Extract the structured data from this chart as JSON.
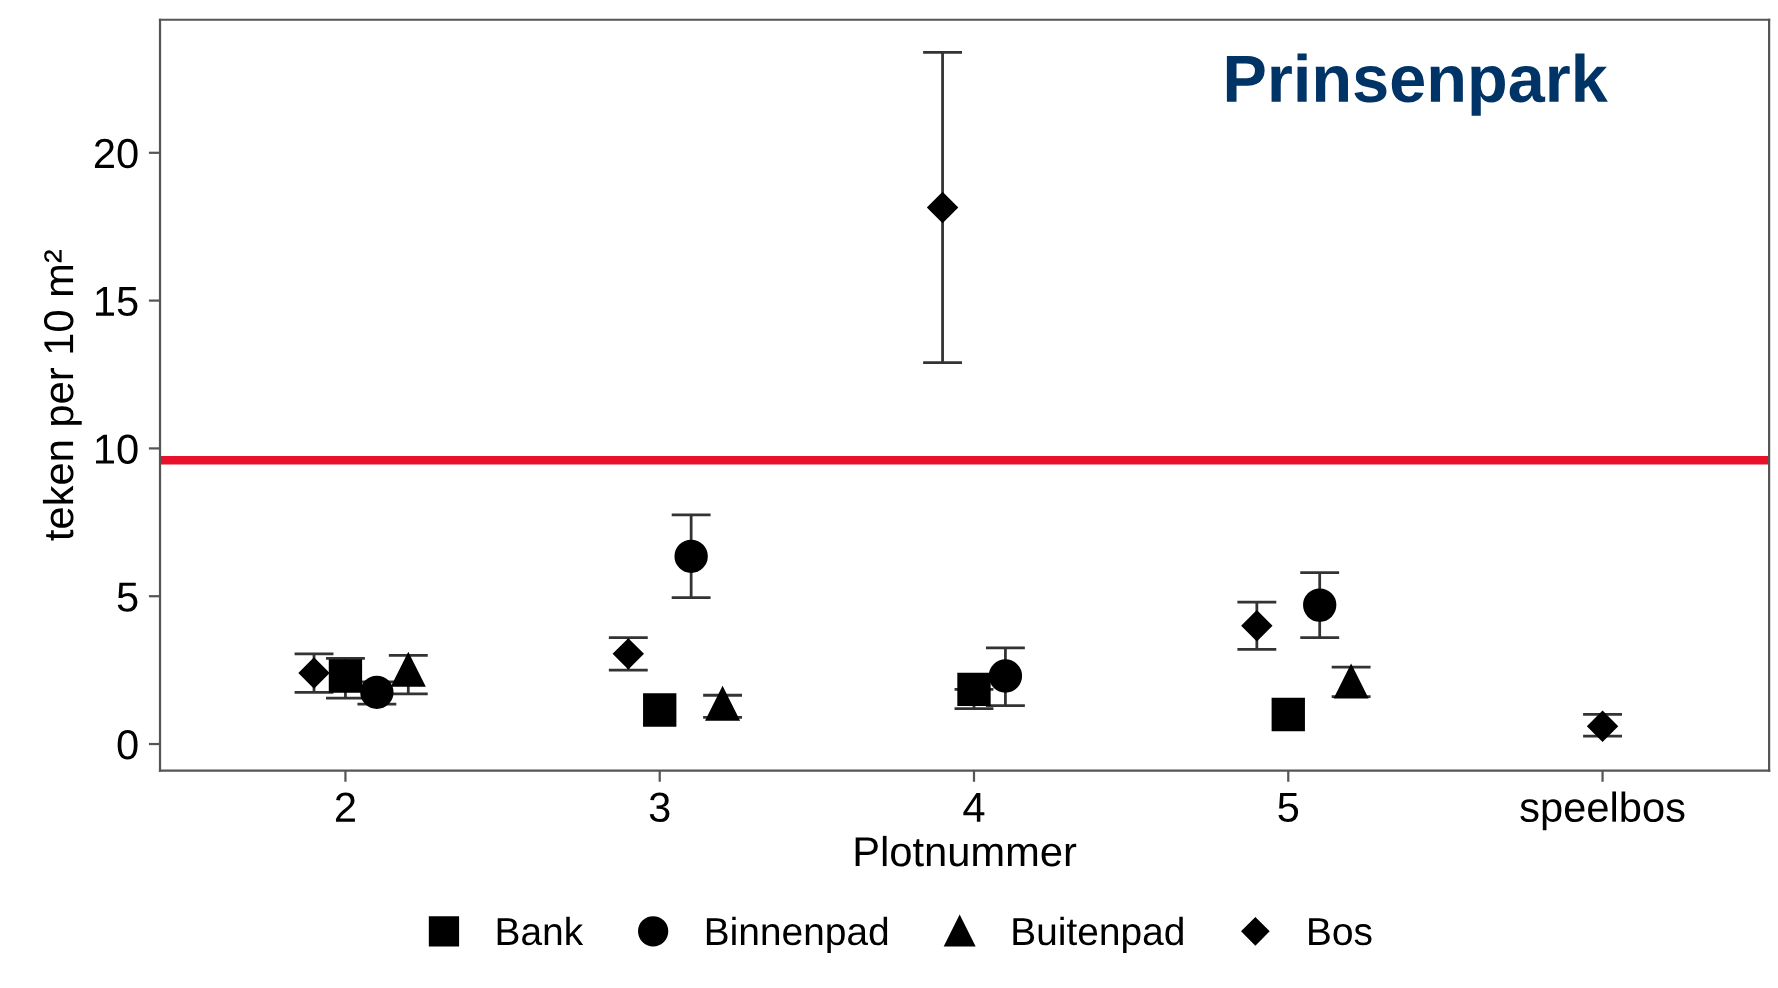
{
  "chart_data": {
    "type": "scatter",
    "title": "Prinsenpark",
    "xlabel": "Plotnummer",
    "ylabel": "teken per 10 m²",
    "categories": [
      "2",
      "3",
      "4",
      "5",
      "speelbos"
    ],
    "ylim": [
      -0.9,
      24.5
    ],
    "yticks": [
      0,
      5,
      10,
      15,
      20
    ],
    "grid": false,
    "legend": "bottom",
    "series": [
      {
        "name": "Bank",
        "color": "#000000",
        "marker": "square",
        "values": [
          2.3,
          1.15,
          1.85,
          1.0,
          null
        ],
        "errors": [
          [
            1.55,
            2.9
          ],
          null,
          [
            1.2,
            1.85
          ],
          null,
          null
        ]
      },
      {
        "name": "Binnenpad",
        "color": "#000000",
        "marker": "circle",
        "values": [
          1.75,
          6.35,
          2.3,
          4.7,
          null
        ],
        "errors": [
          [
            1.35,
            2.1
          ],
          [
            4.95,
            7.75
          ],
          [
            1.3,
            3.25
          ],
          [
            3.6,
            5.8
          ],
          null
        ]
      },
      {
        "name": "Buitenpad",
        "color": "#000000",
        "marker": "triangle",
        "values": [
          2.5,
          1.35,
          null,
          2.1,
          null
        ],
        "errors": [
          [
            1.7,
            3.0
          ],
          [
            0.9,
            1.65
          ],
          null,
          [
            1.6,
            2.6
          ],
          null
        ]
      },
      {
        "name": "Bos",
        "color": "#000000",
        "marker": "diamond",
        "values": [
          2.4,
          3.05,
          18.15,
          4.0,
          0.6
        ],
        "errors": [
          [
            1.75,
            3.05
          ],
          [
            2.5,
            3.6
          ],
          [
            12.9,
            23.4
          ],
          [
            3.2,
            4.8
          ],
          [
            0.27,
            1.0
          ]
        ]
      }
    ],
    "ref_lines": [
      {
        "axis": "y",
        "value": 9.6,
        "color": "#e8102a"
      }
    ]
  }
}
